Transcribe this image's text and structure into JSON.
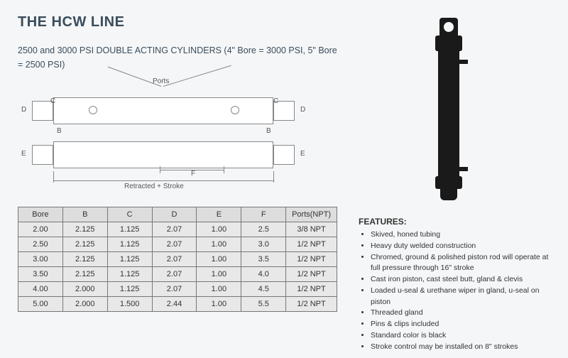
{
  "title": "THE HCW LINE",
  "subtitle": "2500 and 3000 PSI DOUBLE ACTING CYLINDERS (4\" Bore = 3000 PSI, 5\" Bore = 2500 PSI)",
  "diagram": {
    "ports_label": "Ports",
    "retracted_label": "Retracted + Stroke",
    "dims": {
      "B": "B",
      "C": "C",
      "D": "D",
      "E": "E",
      "F": "F"
    }
  },
  "table": {
    "columns": [
      "Bore",
      "B",
      "C",
      "D",
      "E",
      "F",
      "Ports(NPT)"
    ],
    "rows": [
      [
        "2.00",
        "2.125",
        "1.125",
        "2.07",
        "1.00",
        "2.5",
        "3/8 NPT"
      ],
      [
        "2.50",
        "2.125",
        "1.125",
        "2.07",
        "1.00",
        "3.0",
        "1/2 NPT"
      ],
      [
        "3.00",
        "2.125",
        "1.125",
        "2.07",
        "1.00",
        "3.5",
        "1/2 NPT"
      ],
      [
        "3.50",
        "2.125",
        "1.125",
        "2.07",
        "1.00",
        "4.0",
        "1/2 NPT"
      ],
      [
        "4.00",
        "2.000",
        "1.125",
        "2.07",
        "1.00",
        "4.5",
        "1/2 NPT"
      ],
      [
        "5.00",
        "2.000",
        "1.500",
        "2.44",
        "1.00",
        "5.5",
        "1/2 NPT"
      ]
    ],
    "col_widths": [
      "14%",
      "14%",
      "14%",
      "14%",
      "14%",
      "14%",
      "16%"
    ],
    "header_bg": "#dddddd",
    "cell_bg": "#e8e8e8",
    "border_color": "#777777"
  },
  "features": {
    "title": "FEATURES:",
    "items": [
      "Skived, honed tubing",
      "Heavy duty welded construction",
      "Chromed, ground & polished piston rod will operate at full pressure through 16\" stroke",
      "Cast iron piston, cast steel butt, gland & clevis",
      "Loaded u-seal & urethane wiper in gland, u-seal on piston",
      "Threaded gland",
      "Pins & clips included",
      "Standard color is black",
      "Stroke control may be installed on 8\" strokes"
    ]
  },
  "colors": {
    "title_color": "#3a4d5c",
    "bg": "#f5f6f7",
    "cylinder_black": "#1a1a1a",
    "diagram_line": "#888888"
  }
}
